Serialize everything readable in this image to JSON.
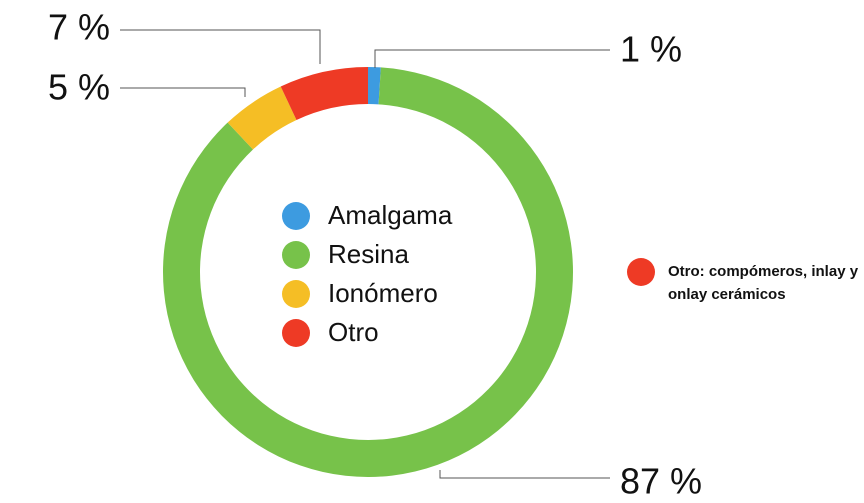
{
  "chart_data": {
    "type": "pie",
    "categories": [
      "Amalgama",
      "Resina",
      "Ionómero",
      "Otro"
    ],
    "values": [
      1,
      87,
      5,
      7
    ],
    "value_labels": [
      "1 %",
      "87 %",
      "5 %",
      "7 %"
    ],
    "colors": [
      "#3d9be0",
      "#77c24a",
      "#f5be25",
      "#ee3a25"
    ],
    "annotation": "Otro:  compómeros, inlay y onlay cerámicos"
  }
}
